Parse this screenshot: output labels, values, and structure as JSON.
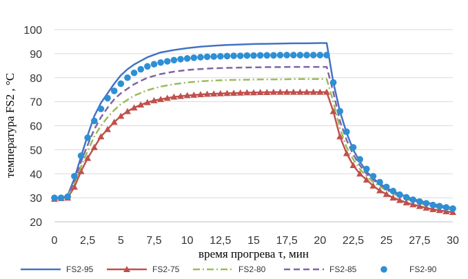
{
  "chart_data": {
    "type": "line",
    "xlabel": "время прогрева τ, мин",
    "ylabel": "температура FS2 , °С",
    "xlim": [
      0,
      30
    ],
    "ylim": [
      20,
      100
    ],
    "x_ticks": [
      "0",
      "2,5",
      "5",
      "7,5",
      "10",
      "12,5",
      "15",
      "17,5",
      "20",
      "22,5",
      "25",
      "27,5",
      "30"
    ],
    "y_ticks": [
      "20",
      "30",
      "40",
      "50",
      "60",
      "70",
      "80",
      "90",
      "100"
    ],
    "grid": "horizontal",
    "legend_position": "bottom",
    "series": [
      {
        "name": "FS2-95",
        "color": "#4472C4",
        "style": "solid",
        "marker": "none",
        "points": [
          [
            0,
            29.5
          ],
          [
            0.5,
            29.8
          ],
          [
            1,
            31
          ],
          [
            1.5,
            38
          ],
          [
            2,
            47
          ],
          [
            2.5,
            56
          ],
          [
            3,
            64
          ],
          [
            3.5,
            69.5
          ],
          [
            4,
            73.5
          ],
          [
            4.5,
            77.5
          ],
          [
            5,
            81
          ],
          [
            5.5,
            83.5
          ],
          [
            6,
            85.5
          ],
          [
            6.5,
            87
          ],
          [
            7,
            88.5
          ],
          [
            7.5,
            89.5
          ],
          [
            8,
            90.5
          ],
          [
            9,
            91.5
          ],
          [
            10,
            92.3
          ],
          [
            11,
            92.9
          ],
          [
            12,
            93.3
          ],
          [
            13,
            93.6
          ],
          [
            14,
            93.8
          ],
          [
            15,
            94
          ],
          [
            16,
            94.1
          ],
          [
            17,
            94.2
          ],
          [
            18,
            94.3
          ],
          [
            19,
            94.3
          ],
          [
            20,
            94.4
          ],
          [
            20.5,
            94.4
          ],
          [
            21,
            78
          ],
          [
            21.5,
            66
          ],
          [
            22,
            57
          ],
          [
            22.5,
            50
          ],
          [
            23,
            45
          ],
          [
            23.5,
            41
          ],
          [
            24,
            38
          ],
          [
            24.5,
            36
          ],
          [
            25,
            34
          ],
          [
            26,
            31.5
          ],
          [
            27,
            29.5
          ],
          [
            28,
            28
          ],
          [
            29,
            26.8
          ],
          [
            30,
            25.8
          ]
        ]
      },
      {
        "name": "FS2-75",
        "color": "#C0504D",
        "style": "solid",
        "marker": "triangle",
        "points": [
          [
            0,
            29.5
          ],
          [
            0.5,
            29.8
          ],
          [
            1,
            30
          ],
          [
            1.5,
            34.5
          ],
          [
            2,
            41
          ],
          [
            2.5,
            46.5
          ],
          [
            3,
            51
          ],
          [
            3.5,
            55.5
          ],
          [
            4,
            58.5
          ],
          [
            4.5,
            61.5
          ],
          [
            5,
            64
          ],
          [
            5.5,
            66
          ],
          [
            6,
            67.5
          ],
          [
            6.5,
            68.7
          ],
          [
            7,
            69.7
          ],
          [
            7.5,
            70.5
          ],
          [
            8,
            71
          ],
          [
            8.5,
            71.5
          ],
          [
            9,
            72
          ],
          [
            9.5,
            72.3
          ],
          [
            10,
            72.6
          ],
          [
            10.5,
            72.8
          ],
          [
            11,
            73
          ],
          [
            11.5,
            73.2
          ],
          [
            12,
            73.3
          ],
          [
            12.5,
            73.4
          ],
          [
            13,
            73.5
          ],
          [
            13.5,
            73.6
          ],
          [
            14,
            73.7
          ],
          [
            14.5,
            73.8
          ],
          [
            15,
            73.8
          ],
          [
            15.5,
            73.9
          ],
          [
            16,
            73.9
          ],
          [
            16.5,
            74
          ],
          [
            17,
            74
          ],
          [
            17.5,
            74
          ],
          [
            18,
            74
          ],
          [
            18.5,
            74
          ],
          [
            19,
            74
          ],
          [
            19.5,
            74
          ],
          [
            20,
            74
          ],
          [
            20.5,
            74
          ],
          [
            21,
            66
          ],
          [
            21.5,
            55.5
          ],
          [
            22,
            48.5
          ],
          [
            22.5,
            43.5
          ],
          [
            23,
            40
          ],
          [
            23.5,
            37.5
          ],
          [
            24,
            35
          ],
          [
            24.5,
            33
          ],
          [
            25,
            31.5
          ],
          [
            25.5,
            30
          ],
          [
            26,
            29
          ],
          [
            26.5,
            28
          ],
          [
            27,
            27.2
          ],
          [
            27.5,
            26.5
          ],
          [
            28,
            25.8
          ],
          [
            28.5,
            25.2
          ],
          [
            29,
            24.8
          ],
          [
            29.5,
            24.3
          ],
          [
            30,
            24
          ]
        ]
      },
      {
        "name": "FS2-80",
        "color": "#9BBB59",
        "style": "dashdot",
        "marker": "none",
        "points": [
          [
            0,
            29.5
          ],
          [
            0.5,
            29.8
          ],
          [
            1,
            30.5
          ],
          [
            1.5,
            36
          ],
          [
            2,
            43
          ],
          [
            2.5,
            49.5
          ],
          [
            3,
            55.5
          ],
          [
            3.5,
            60
          ],
          [
            4,
            63.5
          ],
          [
            4.5,
            66.5
          ],
          [
            5,
            69
          ],
          [
            6,
            72.5
          ],
          [
            7,
            74.8
          ],
          [
            8,
            76.3
          ],
          [
            9,
            77.3
          ],
          [
            10,
            78
          ],
          [
            11,
            78.5
          ],
          [
            12,
            78.8
          ],
          [
            13,
            79
          ],
          [
            14,
            79.1
          ],
          [
            15,
            79.2
          ],
          [
            16,
            79.3
          ],
          [
            17,
            79.3
          ],
          [
            18,
            79.4
          ],
          [
            19,
            79.4
          ],
          [
            20,
            79.4
          ],
          [
            20.5,
            79.4
          ],
          [
            21,
            70
          ],
          [
            21.5,
            59
          ],
          [
            22,
            51
          ],
          [
            22.5,
            46
          ],
          [
            23,
            42
          ],
          [
            23.5,
            39
          ],
          [
            24,
            36.5
          ],
          [
            25,
            33
          ],
          [
            26,
            30.5
          ],
          [
            27,
            28.5
          ],
          [
            28,
            27
          ],
          [
            29,
            25.8
          ],
          [
            30,
            25
          ]
        ]
      },
      {
        "name": "FS2-85",
        "color": "#8064A2",
        "style": "dash",
        "marker": "none",
        "points": [
          [
            0,
            29.5
          ],
          [
            0.5,
            29.8
          ],
          [
            1,
            30.8
          ],
          [
            1.5,
            37
          ],
          [
            2,
            45
          ],
          [
            2.5,
            52
          ],
          [
            3,
            58.5
          ],
          [
            3.5,
            63.5
          ],
          [
            4,
            67.5
          ],
          [
            4.5,
            71
          ],
          [
            5,
            73.5
          ],
          [
            6,
            77.3
          ],
          [
            7,
            80
          ],
          [
            8,
            81.5
          ],
          [
            9,
            82.5
          ],
          [
            10,
            83.2
          ],
          [
            11,
            83.6
          ],
          [
            12,
            83.9
          ],
          [
            13,
            84.1
          ],
          [
            14,
            84.2
          ],
          [
            15,
            84.3
          ],
          [
            16,
            84.4
          ],
          [
            17,
            84.4
          ],
          [
            18,
            84.5
          ],
          [
            19,
            84.5
          ],
          [
            20,
            84.5
          ],
          [
            20.5,
            84.5
          ],
          [
            21,
            74
          ],
          [
            21.5,
            62
          ],
          [
            22,
            54
          ],
          [
            22.5,
            48
          ],
          [
            23,
            43.5
          ],
          [
            23.5,
            40
          ],
          [
            24,
            37.5
          ],
          [
            25,
            33.5
          ],
          [
            26,
            31
          ],
          [
            27,
            29
          ],
          [
            28,
            27.4
          ],
          [
            29,
            26.2
          ],
          [
            30,
            25.3
          ]
        ]
      },
      {
        "name": "FS2-90",
        "color": "#2E8FD4",
        "style": "none",
        "marker": "circle",
        "points": [
          [
            0,
            30
          ],
          [
            0.5,
            30
          ],
          [
            1,
            30.5
          ],
          [
            1.5,
            39
          ],
          [
            2,
            47.5
          ],
          [
            2.5,
            55
          ],
          [
            3,
            62
          ],
          [
            3.5,
            67
          ],
          [
            4,
            71.5
          ],
          [
            4.5,
            74.5
          ],
          [
            5,
            77.5
          ],
          [
            5.5,
            80
          ],
          [
            6,
            82
          ],
          [
            6.5,
            83.5
          ],
          [
            7,
            84.7
          ],
          [
            7.5,
            85.6
          ],
          [
            8,
            86.3
          ],
          [
            8.5,
            86.8
          ],
          [
            9,
            87.3
          ],
          [
            9.5,
            87.7
          ],
          [
            10,
            88
          ],
          [
            10.5,
            88.3
          ],
          [
            11,
            88.5
          ],
          [
            11.5,
            88.7
          ],
          [
            12,
            88.8
          ],
          [
            12.5,
            88.9
          ],
          [
            13,
            89
          ],
          [
            13.5,
            89.1
          ],
          [
            14,
            89.1
          ],
          [
            14.5,
            89.2
          ],
          [
            15,
            89.2
          ],
          [
            15.5,
            89.3
          ],
          [
            16,
            89.3
          ],
          [
            16.5,
            89.3
          ],
          [
            17,
            89.4
          ],
          [
            17.5,
            89.4
          ],
          [
            18,
            89.4
          ],
          [
            18.5,
            89.4
          ],
          [
            19,
            89.4
          ],
          [
            19.5,
            89.4
          ],
          [
            20,
            89.4
          ],
          [
            20.5,
            89.4
          ],
          [
            21,
            78
          ],
          [
            21.5,
            66
          ],
          [
            22,
            57.5
          ],
          [
            22.5,
            51
          ],
          [
            23,
            46
          ],
          [
            23.5,
            42
          ],
          [
            24,
            39
          ],
          [
            24.5,
            36.5
          ],
          [
            25,
            34.5
          ],
          [
            25.5,
            32.8
          ],
          [
            26,
            31.3
          ],
          [
            26.5,
            30.2
          ],
          [
            27,
            29.2
          ],
          [
            27.5,
            28.4
          ],
          [
            28,
            27.7
          ],
          [
            28.5,
            27
          ],
          [
            29,
            26.5
          ],
          [
            29.5,
            26
          ],
          [
            30,
            25.5
          ]
        ]
      }
    ]
  }
}
